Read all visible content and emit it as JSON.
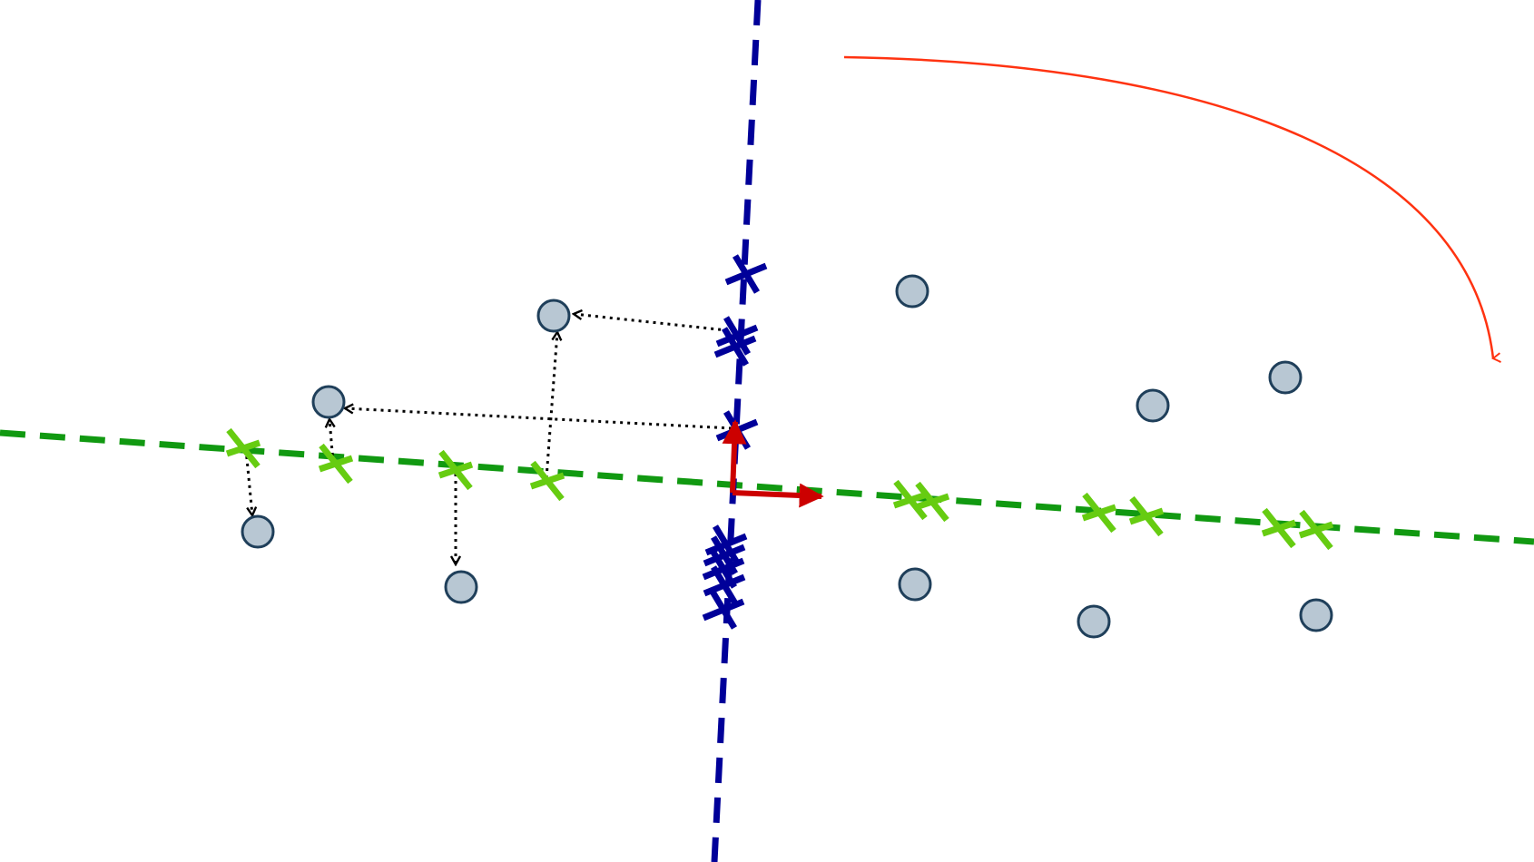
{
  "colors": {
    "background": "#ffffff",
    "axis_main": "#119911",
    "axis_secondary": "#000099",
    "main_projection_mark": "#66cc11",
    "secondary_projection_mark": "#000099",
    "point_fill": "#b8c7d3",
    "point_stroke": "#1f3f5a",
    "basis_vector": "#cc0000",
    "rotation_arrow": "#ff3311",
    "projection_guide": "#000000"
  },
  "icons": {
    "point": "circle-point",
    "projection_mark": "cross-mark",
    "rotation": "curved-arrow-icon",
    "basis": "arrow-icon"
  }
}
